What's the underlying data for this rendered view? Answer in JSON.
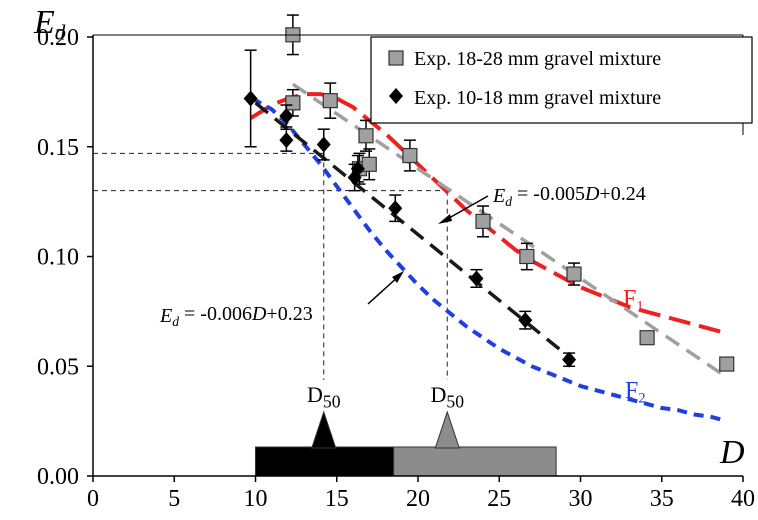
{
  "chart_data": {
    "type": "scatter",
    "xlabel": "D",
    "ylabel_main": "E",
    "ylabel_sub": "d",
    "xlim": [
      0,
      40
    ],
    "ylim": [
      0,
      0.2
    ],
    "xticks": [
      0,
      5,
      10,
      15,
      20,
      25,
      30,
      35,
      40
    ],
    "yticks": [
      0.0,
      0.05,
      0.1,
      0.15,
      0.2
    ],
    "xtick_labels": [
      "0",
      "5",
      "10",
      "15",
      "20",
      "25",
      "30",
      "35",
      "40"
    ],
    "ytick_labels": [
      "0.00",
      "0.05",
      "0.10",
      "0.15",
      "0.20"
    ],
    "legend_position": "top-right",
    "series": [
      {
        "name": "Exp. 18-28 mm gravel mixture",
        "marker": "square",
        "color": "#a0a0a0",
        "points": [
          {
            "x": 12.3,
            "y": 0.201,
            "err": 0.009
          },
          {
            "x": 12.3,
            "y": 0.17,
            "err": 0.006
          },
          {
            "x": 14.6,
            "y": 0.171,
            "err": 0.008
          },
          {
            "x": 16.4,
            "y": 0.14,
            "err": 0.007
          },
          {
            "x": 16.8,
            "y": 0.155,
            "err": 0.007
          },
          {
            "x": 17.0,
            "y": 0.142,
            "err": 0.007
          },
          {
            "x": 19.5,
            "y": 0.146,
            "err": 0.007
          },
          {
            "x": 24.0,
            "y": 0.116,
            "err": 0.007
          },
          {
            "x": 26.7,
            "y": 0.1,
            "err": 0.006
          },
          {
            "x": 29.6,
            "y": 0.092,
            "err": 0.005
          },
          {
            "x": 34.1,
            "y": 0.063,
            "err": 0.0
          },
          {
            "x": 39.0,
            "y": 0.051,
            "err": 0.0
          }
        ]
      },
      {
        "name": "Exp. 10-18 mm gravel mixture",
        "marker": "diamond",
        "color": "#000000",
        "points": [
          {
            "x": 9.7,
            "y": 0.172,
            "err": 0.022
          },
          {
            "x": 11.9,
            "y": 0.164,
            "err": 0.005
          },
          {
            "x": 11.9,
            "y": 0.153,
            "err": 0.005
          },
          {
            "x": 14.2,
            "y": 0.151,
            "err": 0.007
          },
          {
            "x": 16.1,
            "y": 0.136,
            "err": 0.006
          },
          {
            "x": 16.3,
            "y": 0.14,
            "err": 0.006
          },
          {
            "x": 18.6,
            "y": 0.122,
            "err": 0.006
          },
          {
            "x": 23.6,
            "y": 0.09,
            "err": 0.004
          },
          {
            "x": 26.6,
            "y": 0.071,
            "err": 0.004
          },
          {
            "x": 29.3,
            "y": 0.053,
            "err": 0.003
          }
        ]
      }
    ],
    "fits": [
      {
        "slope": -0.005,
        "intercept": 0.24,
        "x_range": [
          12.3,
          39
        ],
        "color": "#a0a0a0",
        "dash": "dashed"
      },
      {
        "slope": -0.006,
        "intercept": 0.23,
        "x_range": [
          10,
          29.5
        ],
        "color": "#1a1a1a",
        "dash": "dashed"
      }
    ],
    "curves": [
      {
        "label": "F",
        "label_sub": "1",
        "color": "#ee2020",
        "points": [
          [
            9.7,
            0.163
          ],
          [
            11,
            0.169
          ],
          [
            12,
            0.172
          ],
          [
            13,
            0.174
          ],
          [
            14,
            0.174
          ],
          [
            15,
            0.172
          ],
          [
            16,
            0.168
          ],
          [
            17,
            0.162
          ],
          [
            18,
            0.156
          ],
          [
            19,
            0.149
          ],
          [
            20,
            0.142
          ],
          [
            21,
            0.135
          ],
          [
            22,
            0.128
          ],
          [
            23,
            0.121
          ],
          [
            24,
            0.115
          ],
          [
            25,
            0.109
          ],
          [
            26,
            0.103
          ],
          [
            27,
            0.098
          ],
          [
            28,
            0.094
          ],
          [
            29,
            0.09
          ],
          [
            30,
            0.086
          ],
          [
            31,
            0.083
          ],
          [
            32,
            0.08
          ],
          [
            33,
            0.077
          ],
          [
            34,
            0.075
          ],
          [
            35,
            0.073
          ],
          [
            36,
            0.071
          ],
          [
            37,
            0.069
          ],
          [
            38,
            0.067
          ],
          [
            39,
            0.065
          ]
        ]
      },
      {
        "label": "F",
        "label_sub": "2",
        "color": "#1f3fe0",
        "points": [
          [
            9.8,
            0.172
          ],
          [
            11,
            0.167
          ],
          [
            12,
            0.16
          ],
          [
            13,
            0.151
          ],
          [
            14,
            0.142
          ],
          [
            15,
            0.132
          ],
          [
            16,
            0.122
          ],
          [
            17,
            0.112
          ],
          [
            18,
            0.103
          ],
          [
            19,
            0.095
          ],
          [
            20,
            0.087
          ],
          [
            21,
            0.08
          ],
          [
            22,
            0.074
          ],
          [
            23,
            0.068
          ],
          [
            24,
            0.063
          ],
          [
            25,
            0.058
          ],
          [
            26,
            0.054
          ],
          [
            27,
            0.05
          ],
          [
            28,
            0.047
          ],
          [
            29,
            0.044
          ],
          [
            30,
            0.041
          ],
          [
            31,
            0.039
          ],
          [
            32,
            0.037
          ],
          [
            33,
            0.035
          ],
          [
            34,
            0.033
          ],
          [
            35,
            0.031
          ],
          [
            36,
            0.03
          ],
          [
            37,
            0.028
          ],
          [
            38,
            0.027
          ],
          [
            39,
            0.025
          ]
        ]
      }
    ],
    "guide_lines": [
      {
        "x": 14.2,
        "y": 0.147
      },
      {
        "x": 21.8,
        "y": 0.13
      }
    ],
    "equations": [
      {
        "lhs": "E",
        "lhs_sub": "d",
        "rhs_prefix": " = -0.005",
        "rhs_var": "D",
        "rhs_suffix": "+0.24"
      },
      {
        "lhs": "E",
        "lhs_sub": "d",
        "rhs_prefix": " = -0.006",
        "rhs_var": "D",
        "rhs_suffix": "+0.23"
      }
    ],
    "size_ranges": [
      {
        "from": 10,
        "to": 18.5,
        "color": "#000000",
        "d50": 14.2,
        "d50_label": "D",
        "d50_sub": "50"
      },
      {
        "from": 18.5,
        "to": 28.5,
        "color": "#8c8c8c",
        "d50": 21.8,
        "d50_label": "D",
        "d50_sub": "50"
      }
    ]
  }
}
